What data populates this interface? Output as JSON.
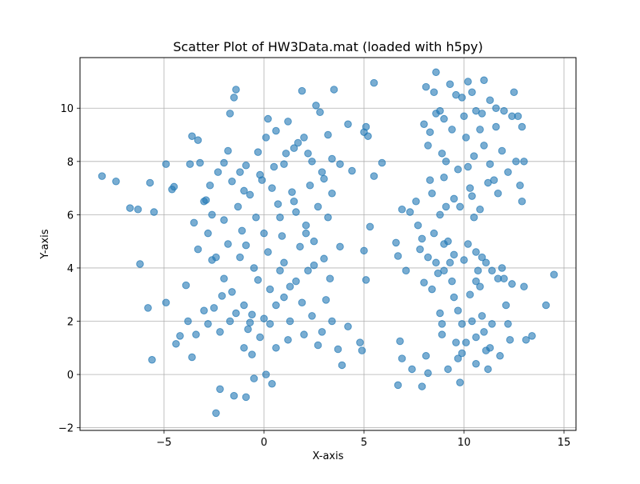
{
  "chart_data": {
    "type": "scatter",
    "title": "Scatter Plot of HW3Data.mat (loaded with h5py)",
    "xlabel": "X-axis",
    "ylabel": "Y-axis",
    "xlim": [
      -9.2,
      15.6
    ],
    "ylim": [
      -2.1,
      11.9
    ],
    "xticks": [
      -5,
      0,
      5,
      10,
      15
    ],
    "yticks": [
      -2,
      0,
      2,
      4,
      6,
      8,
      10
    ],
    "grid": true,
    "marker": "circle",
    "color": "#1f77b4",
    "alpha": 0.6,
    "points": [
      [
        -8.1,
        7.45
      ],
      [
        -7.4,
        7.25
      ],
      [
        -6.7,
        6.25
      ],
      [
        -6.3,
        6.2
      ],
      [
        -5.7,
        7.2
      ],
      [
        -5.5,
        6.1
      ],
      [
        -6.2,
        4.15
      ],
      [
        -5.8,
        2.5
      ],
      [
        -5.6,
        0.55
      ],
      [
        -4.9,
        7.9
      ],
      [
        -4.6,
        6.95
      ],
      [
        -4.5,
        7.05
      ],
      [
        -4.9,
        2.7
      ],
      [
        -4.4,
        1.15
      ],
      [
        -4.2,
        1.45
      ],
      [
        -3.9,
        3.35
      ],
      [
        -3.8,
        2.0
      ],
      [
        -3.7,
        7.9
      ],
      [
        -3.6,
        8.95
      ],
      [
        -3.3,
        8.8
      ],
      [
        -3.2,
        7.95
      ],
      [
        -3.5,
        5.7
      ],
      [
        -3.3,
        4.7
      ],
      [
        -3.6,
        0.65
      ],
      [
        -3.4,
        1.5
      ],
      [
        -2.9,
        6.55
      ],
      [
        -2.7,
        7.1
      ],
      [
        -2.8,
        5.3
      ],
      [
        -2.6,
        4.3
      ],
      [
        -2.5,
        2.5
      ],
      [
        -2.4,
        -1.45
      ],
      [
        -2.2,
        -0.55
      ],
      [
        -2.0,
        7.95
      ],
      [
        -1.8,
        8.4
      ],
      [
        -1.7,
        9.8
      ],
      [
        -1.5,
        10.4
      ],
      [
        -1.4,
        10.7
      ],
      [
        -1.2,
        7.6
      ],
      [
        -1.0,
        6.9
      ],
      [
        -0.9,
        4.85
      ],
      [
        -0.7,
        1.95
      ],
      [
        -0.6,
        0.75
      ],
      [
        -0.5,
        -0.15
      ],
      [
        -1.5,
        -0.8
      ],
      [
        -0.9,
        -0.85
      ],
      [
        -0.2,
        7.5
      ],
      [
        0.1,
        8.9
      ],
      [
        0.2,
        9.6
      ],
      [
        0.6,
        9.15
      ],
      [
        -0.3,
        3.55
      ],
      [
        0.3,
        3.2
      ],
      [
        0.1,
        0.0
      ],
      [
        0.4,
        -0.35
      ],
      [
        1.0,
        7.9
      ],
      [
        1.5,
        8.5
      ],
      [
        1.9,
        10.65
      ],
      [
        1.2,
        9.5
      ],
      [
        2.0,
        8.9
      ],
      [
        2.2,
        8.3
      ],
      [
        2.6,
        10.1
      ],
      [
        2.8,
        9.85
      ],
      [
        3.2,
        9.0
      ],
      [
        3.5,
        10.7
      ],
      [
        3.8,
        7.9
      ],
      [
        4.2,
        9.4
      ],
      [
        4.4,
        7.65
      ],
      [
        5.0,
        9.1
      ],
      [
        5.1,
        9.3
      ],
      [
        5.2,
        8.95
      ],
      [
        5.5,
        7.45
      ],
      [
        5.5,
        10.95
      ],
      [
        5.9,
        7.95
      ],
      [
        5.3,
        5.55
      ],
      [
        5.0,
        4.65
      ],
      [
        5.1,
        3.55
      ],
      [
        4.8,
        1.2
      ],
      [
        4.9,
        0.9
      ],
      [
        3.7,
        0.95
      ],
      [
        3.9,
        0.35
      ],
      [
        4.2,
        1.8
      ],
      [
        3.0,
        4.35
      ],
      [
        2.5,
        5.0
      ],
      [
        2.1,
        5.6
      ],
      [
        1.6,
        6.1
      ],
      [
        1.0,
        4.2
      ],
      [
        0.8,
        3.9
      ],
      [
        1.3,
        3.3
      ],
      [
        1.9,
        2.7
      ],
      [
        2.4,
        2.2
      ],
      [
        2.9,
        1.6
      ],
      [
        1.2,
        1.3
      ],
      [
        0.6,
        1.0
      ],
      [
        -0.6,
        2.25
      ],
      [
        -1.0,
        2.6
      ],
      [
        -1.6,
        3.1
      ],
      [
        -2.0,
        3.6
      ],
      [
        -2.4,
        4.4
      ],
      [
        -1.8,
        4.9
      ],
      [
        -1.1,
        5.4
      ],
      [
        -0.4,
        5.9
      ],
      [
        0.7,
        6.4
      ],
      [
        1.4,
        6.85
      ],
      [
        2.3,
        7.1
      ],
      [
        2.9,
        7.6
      ],
      [
        3.4,
        8.1
      ],
      [
        -1.7,
        2.0
      ],
      [
        -2.2,
        1.6
      ],
      [
        -2.8,
        1.9
      ],
      [
        -3.0,
        2.4
      ],
      [
        -2.0,
        5.8
      ],
      [
        -1.3,
        6.3
      ],
      [
        -0.7,
        6.75
      ],
      [
        -0.1,
        7.3
      ],
      [
        0.5,
        7.8
      ],
      [
        1.1,
        8.3
      ],
      [
        1.7,
        8.7
      ],
      [
        2.4,
        8.0
      ],
      [
        3.0,
        7.35
      ],
      [
        -2.3,
        7.6
      ],
      [
        -1.6,
        7.25
      ],
      [
        -0.9,
        7.85
      ],
      [
        -0.3,
        8.35
      ],
      [
        0.4,
        7.0
      ],
      [
        -1.2,
        4.4
      ],
      [
        -0.5,
        4.0
      ],
      [
        0.2,
        4.6
      ],
      [
        0.9,
        5.2
      ],
      [
        1.8,
        4.8
      ],
      [
        2.5,
        4.1
      ],
      [
        3.3,
        3.6
      ],
      [
        3.8,
        4.8
      ],
      [
        3.2,
        5.9
      ],
      [
        -2.1,
        2.95
      ],
      [
        -1.4,
        2.3
      ],
      [
        -0.8,
        1.7
      ],
      [
        0.0,
        2.1
      ],
      [
        0.6,
        2.6
      ],
      [
        1.3,
        2.0
      ],
      [
        2.0,
        1.5
      ],
      [
        2.7,
        1.1
      ],
      [
        3.4,
        2.0
      ],
      [
        3.1,
        2.8
      ],
      [
        -1.0,
        1.0
      ],
      [
        -0.2,
        1.4
      ],
      [
        0.3,
        1.9
      ],
      [
        1.0,
        2.9
      ],
      [
        1.6,
        3.5
      ],
      [
        2.2,
        3.9
      ],
      [
        -2.6,
        6.0
      ],
      [
        -3.0,
        6.5
      ],
      [
        0.0,
        5.3
      ],
      [
        0.8,
        5.9
      ],
      [
        1.5,
        6.5
      ],
      [
        2.1,
        5.3
      ],
      [
        2.7,
        6.3
      ],
      [
        3.4,
        6.8
      ],
      [
        6.6,
        4.95
      ],
      [
        6.7,
        4.45
      ],
      [
        6.9,
        6.2
      ],
      [
        6.8,
        1.25
      ],
      [
        6.7,
        -0.4
      ],
      [
        6.9,
        0.6
      ],
      [
        7.1,
        3.9
      ],
      [
        7.3,
        6.1
      ],
      [
        7.4,
        0.2
      ],
      [
        7.6,
        6.5
      ],
      [
        7.7,
        5.6
      ],
      [
        7.8,
        4.7
      ],
      [
        7.9,
        5.1
      ],
      [
        8.0,
        3.45
      ],
      [
        8.1,
        0.7
      ],
      [
        8.2,
        0.05
      ],
      [
        7.9,
        -0.45
      ],
      [
        8.0,
        9.4
      ],
      [
        8.1,
        10.8
      ],
      [
        8.2,
        8.6
      ],
      [
        8.3,
        7.3
      ],
      [
        8.4,
        6.8
      ],
      [
        8.5,
        5.3
      ],
      [
        8.6,
        4.2
      ],
      [
        8.7,
        3.8
      ],
      [
        8.8,
        2.3
      ],
      [
        8.9,
        1.5
      ],
      [
        8.6,
        11.35
      ],
      [
        8.5,
        10.6
      ],
      [
        8.8,
        9.9
      ],
      [
        8.9,
        8.3
      ],
      [
        9.0,
        7.4
      ],
      [
        9.1,
        6.3
      ],
      [
        9.2,
        5.0
      ],
      [
        9.3,
        4.2
      ],
      [
        9.4,
        3.5
      ],
      [
        9.5,
        2.9
      ],
      [
        9.6,
        1.2
      ],
      [
        9.7,
        0.6
      ],
      [
        9.8,
        -0.3
      ],
      [
        9.9,
        10.4
      ],
      [
        10.0,
        9.7
      ],
      [
        10.1,
        8.9
      ],
      [
        10.2,
        7.8
      ],
      [
        10.3,
        7.0
      ],
      [
        10.4,
        6.7
      ],
      [
        10.5,
        5.9
      ],
      [
        10.6,
        4.6
      ],
      [
        10.7,
        3.9
      ],
      [
        10.8,
        3.3
      ],
      [
        10.9,
        2.2
      ],
      [
        11.0,
        1.6
      ],
      [
        11.1,
        0.9
      ],
      [
        11.2,
        0.2
      ],
      [
        10.2,
        11.0
      ],
      [
        10.4,
        10.6
      ],
      [
        10.6,
        9.9
      ],
      [
        10.8,
        9.2
      ],
      [
        11.0,
        8.6
      ],
      [
        11.3,
        7.9
      ],
      [
        11.5,
        7.3
      ],
      [
        11.7,
        6.8
      ],
      [
        11.9,
        4.0
      ],
      [
        12.0,
        3.6
      ],
      [
        12.1,
        2.6
      ],
      [
        12.2,
        1.9
      ],
      [
        12.3,
        1.3
      ],
      [
        12.4,
        9.7
      ],
      [
        12.5,
        10.6
      ],
      [
        12.6,
        8.0
      ],
      [
        12.8,
        7.1
      ],
      [
        12.9,
        6.5
      ],
      [
        12.7,
        9.7
      ],
      [
        13.0,
        3.3
      ],
      [
        13.1,
        1.3
      ],
      [
        13.4,
        1.45
      ],
      [
        13.0,
        8.0
      ],
      [
        12.9,
        9.3
      ],
      [
        14.1,
        2.6
      ],
      [
        14.5,
        3.75
      ],
      [
        11.0,
        11.05
      ],
      [
        11.3,
        10.3
      ],
      [
        11.6,
        10.0
      ],
      [
        9.0,
        9.6
      ],
      [
        9.3,
        10.9
      ],
      [
        9.6,
        10.5
      ],
      [
        8.3,
        9.1
      ],
      [
        9.8,
        6.3
      ],
      [
        10.0,
        4.3
      ],
      [
        10.3,
        3.0
      ],
      [
        9.9,
        1.9
      ],
      [
        10.1,
        1.2
      ],
      [
        10.6,
        0.4
      ],
      [
        11.4,
        1.9
      ],
      [
        11.8,
        0.7
      ],
      [
        11.7,
        3.6
      ],
      [
        9.0,
        4.9
      ],
      [
        9.5,
        4.5
      ],
      [
        10.2,
        4.9
      ],
      [
        10.9,
        4.4
      ],
      [
        11.4,
        3.9
      ],
      [
        8.2,
        4.4
      ],
      [
        8.8,
        6.0
      ],
      [
        9.5,
        6.6
      ],
      [
        10.8,
        6.2
      ],
      [
        11.2,
        7.2
      ],
      [
        9.1,
        8.0
      ],
      [
        9.7,
        7.7
      ],
      [
        10.5,
        8.2
      ],
      [
        11.9,
        8.4
      ],
      [
        12.2,
        7.6
      ],
      [
        8.6,
        9.8
      ],
      [
        9.4,
        9.2
      ],
      [
        10.9,
        9.8
      ],
      [
        11.6,
        9.3
      ],
      [
        12.0,
        9.9
      ],
      [
        9.2,
        0.2
      ],
      [
        9.9,
        0.8
      ],
      [
        10.6,
        1.4
      ],
      [
        11.3,
        1.0
      ],
      [
        8.9,
        1.9
      ],
      [
        9.7,
        2.4
      ],
      [
        10.4,
        2.0
      ],
      [
        8.4,
        3.2
      ],
      [
        9.0,
        3.9
      ],
      [
        10.6,
        3.5
      ],
      [
        11.1,
        4.2
      ],
      [
        12.4,
        3.4
      ]
    ]
  }
}
